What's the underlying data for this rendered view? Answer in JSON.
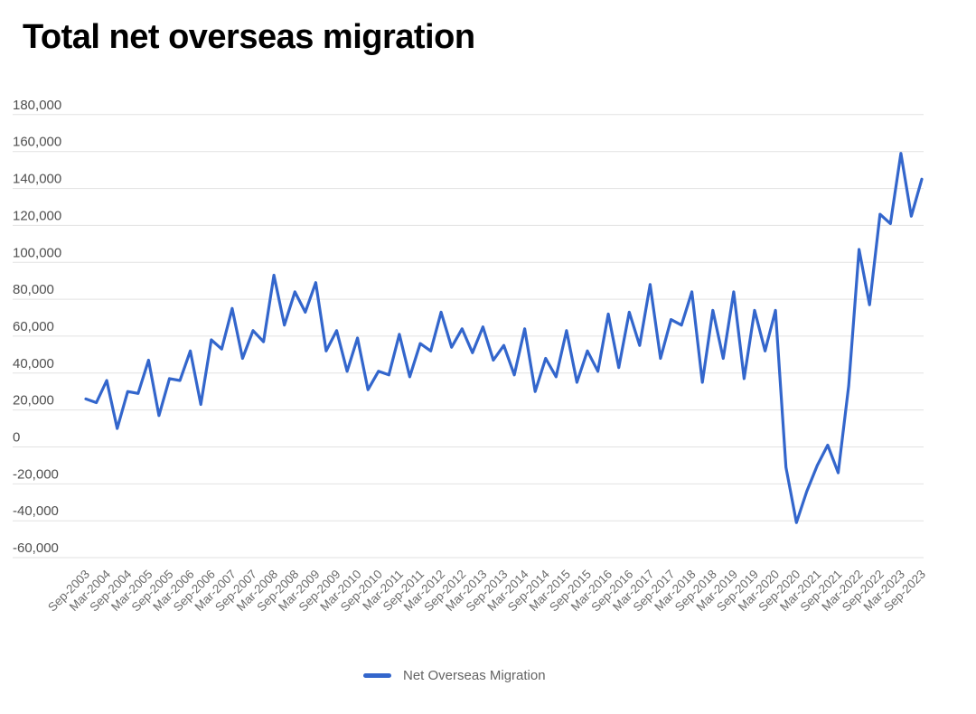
{
  "page": {
    "title": "Total net overseas migration"
  },
  "legend": {
    "label": "Net Overseas Migration",
    "swatch_icon": "line-swatch-icon"
  },
  "colors": {
    "line": "#3366CC",
    "grid": "#e2e2e2",
    "title": "#000000",
    "y_label": "#4f4f4f",
    "x_label": "#6b6b6b",
    "legend_text": "#636363",
    "background": "#ffffff"
  },
  "chart_data": {
    "type": "line",
    "title": "Total net overseas migration",
    "xlabel": "",
    "ylabel": "",
    "ylim": [
      -60000,
      180000
    ],
    "y_tick_step": 20000,
    "grid": "horizontal",
    "legend_position": "bottom",
    "x_start": "Sep-2003",
    "x_interval_months": 3,
    "x_tick_labels": [
      "Sep-2003",
      "Mar-2004",
      "Sep-2004",
      "Mar-2005",
      "Sep-2005",
      "Mar-2006",
      "Sep-2006",
      "Mar-2007",
      "Sep-2007",
      "Mar-2008",
      "Sep-2008",
      "Mar-2009",
      "Sep-2009",
      "Mar-2010",
      "Sep-2010",
      "Mar-2011",
      "Sep-2011",
      "Mar-2012",
      "Sep-2012",
      "Mar-2013",
      "Sep-2013",
      "Mar-2014",
      "Sep-2014",
      "Mar-2015",
      "Sep-2015",
      "Mar-2016",
      "Sep-2016",
      "Mar-2017",
      "Sep-2017",
      "Mar-2018",
      "Sep-2018",
      "Mar-2019",
      "Sep-2019",
      "Mar-2020",
      "Sep-2020",
      "Mar-2021",
      "Sep-2021",
      "Mar-2022",
      "Sep-2022",
      "Mar-2023",
      "Sep-2023"
    ],
    "y_tick_labels": [
      "180,000",
      "160,000",
      "140,000",
      "120,000",
      "100,000",
      "80,000",
      "60,000",
      "40,000",
      "20,000",
      "0",
      "-20,000",
      "-40,000",
      "-60,000"
    ],
    "series": [
      {
        "name": "Net Overseas Migration",
        "values": [
          26000,
          24000,
          36000,
          10000,
          30000,
          29000,
          47000,
          17000,
          37000,
          36000,
          52000,
          23000,
          58000,
          53000,
          75000,
          48000,
          63000,
          57000,
          93000,
          66000,
          84000,
          73000,
          89000,
          52000,
          63000,
          41000,
          59000,
          31000,
          41000,
          39000,
          61000,
          38000,
          56000,
          52000,
          73000,
          54000,
          64000,
          51000,
          65000,
          47000,
          55000,
          39000,
          64000,
          30000,
          48000,
          38000,
          63000,
          35000,
          52000,
          41000,
          72000,
          43000,
          73000,
          55000,
          88000,
          48000,
          69000,
          66000,
          84000,
          35000,
          74000,
          48000,
          84000,
          37000,
          74000,
          52000,
          74000,
          -11000,
          -41000,
          -24000,
          -10000,
          1000,
          -14000,
          33000,
          107000,
          77000,
          126000,
          121000,
          159000,
          125000,
          145000
        ]
      }
    ]
  }
}
